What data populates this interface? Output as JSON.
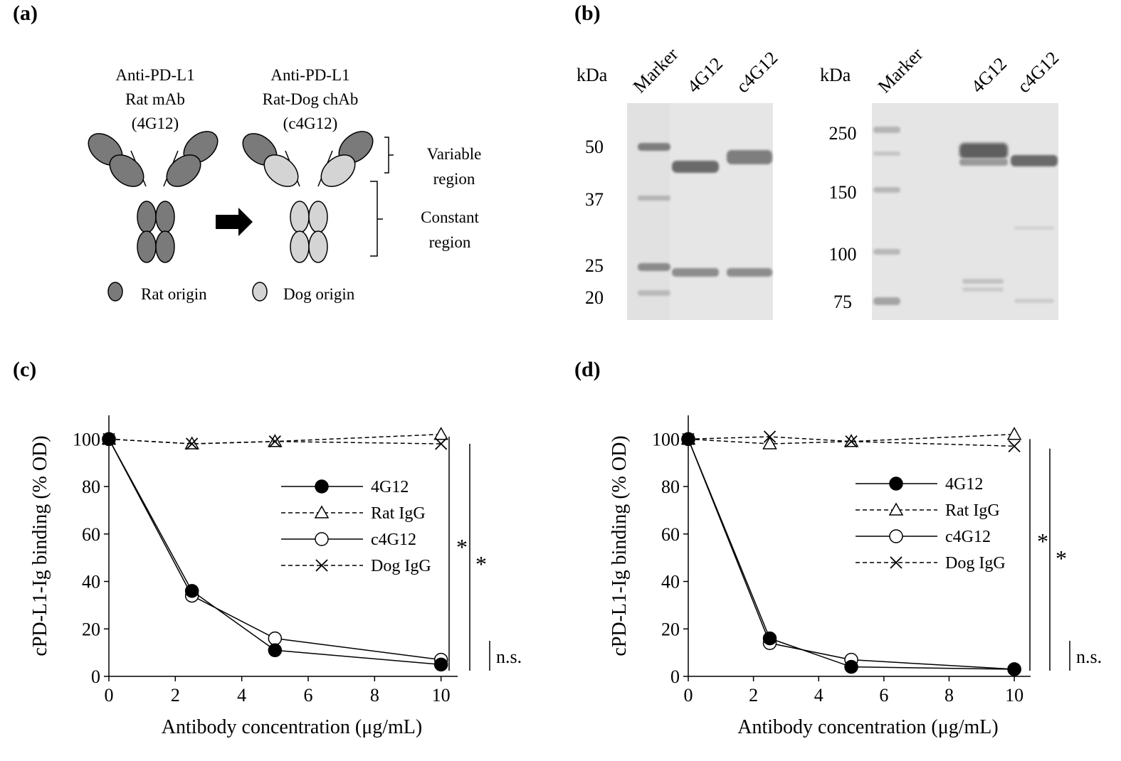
{
  "panels": {
    "a": {
      "label": "(a)",
      "rat_title": [
        "Anti-PD-L1",
        "Rat mAb",
        "(4G12)"
      ],
      "chimeric_title": [
        "Anti-PD-L1",
        "Rat-Dog chAb",
        "(c4G12)"
      ],
      "variable_region": [
        "Variable",
        "region"
      ],
      "constant_region": [
        "Constant",
        "region"
      ],
      "legend_rat": "Rat origin",
      "legend_dog": "Dog origin",
      "colors": {
        "rat": "#7a7a7a",
        "dog": "#d4d4d4"
      }
    },
    "b": {
      "label": "(b)",
      "left_gel": {
        "unit": "kDa",
        "lanes": [
          "Marker",
          "4G12",
          "c4G12"
        ],
        "markers": [
          "50",
          "37",
          "25",
          "20"
        ]
      },
      "right_gel": {
        "unit": "kDa",
        "lanes": [
          "Marker",
          "4G12",
          "c4G12"
        ],
        "markers": [
          "250",
          "150",
          "100",
          "75"
        ]
      }
    },
    "c": {
      "label": "(c)"
    },
    "d": {
      "label": "(d)"
    }
  },
  "chart_data": [
    {
      "type": "line",
      "panel": "c",
      "xlabel": "Antibody concentration (μg/mL)",
      "ylabel": "cPD-L1-Ig binding (% OD)",
      "xlim": [
        0,
        10.5
      ],
      "ylim": [
        0,
        110
      ],
      "xticks": [
        0,
        2,
        4,
        6,
        8,
        10
      ],
      "yticks": [
        0,
        20,
        40,
        60,
        80,
        100
      ],
      "x": [
        0,
        2.5,
        5,
        10
      ],
      "series": [
        {
          "name": "4G12",
          "values": [
            100,
            36,
            11,
            5
          ],
          "marker": "filled-circle",
          "line": "solid"
        },
        {
          "name": "Rat IgG",
          "values": [
            100,
            98,
            99,
            102
          ],
          "marker": "triangle",
          "line": "dashed"
        },
        {
          "name": "c4G12",
          "values": [
            100,
            34,
            16,
            7
          ],
          "marker": "open-circle",
          "line": "solid"
        },
        {
          "name": "Dog IgG",
          "values": [
            100,
            98,
            99,
            98
          ],
          "marker": "cross",
          "line": "dashed"
        }
      ],
      "legend_position": "center-right",
      "annotations": [
        "*",
        "*",
        "n.s."
      ]
    },
    {
      "type": "line",
      "panel": "d",
      "xlabel": "Antibody concentration (μg/mL)",
      "ylabel": "cPD-L1-Ig binding (% OD)",
      "xlim": [
        0,
        10.5
      ],
      "ylim": [
        0,
        110
      ],
      "xticks": [
        0,
        2,
        4,
        6,
        8,
        10
      ],
      "yticks": [
        0,
        20,
        40,
        60,
        80,
        100
      ],
      "x": [
        0,
        2.5,
        5,
        10
      ],
      "series": [
        {
          "name": "4G12",
          "values": [
            100,
            16,
            4,
            3
          ],
          "marker": "filled-circle",
          "line": "solid"
        },
        {
          "name": "Rat IgG",
          "values": [
            100,
            98,
            99,
            102
          ],
          "marker": "triangle",
          "line": "dashed"
        },
        {
          "name": "c4G12",
          "values": [
            100,
            14,
            7,
            3
          ],
          "marker": "open-circle",
          "line": "solid"
        },
        {
          "name": "Dog IgG",
          "values": [
            100,
            101,
            99,
            97
          ],
          "marker": "cross",
          "line": "dashed"
        }
      ],
      "legend_position": "center-right",
      "annotations": [
        "*",
        "*",
        "n.s."
      ]
    }
  ]
}
